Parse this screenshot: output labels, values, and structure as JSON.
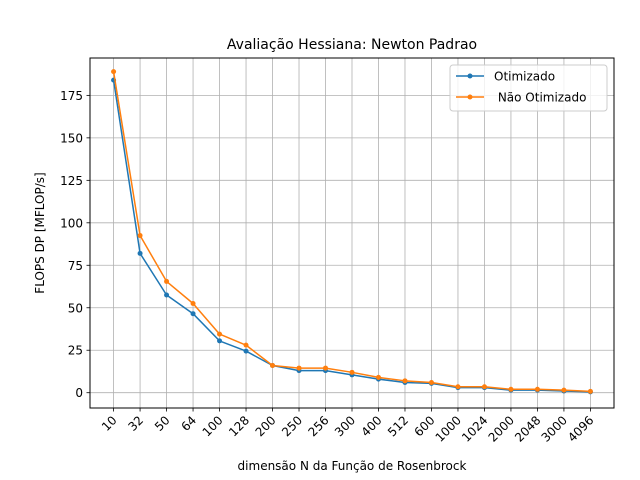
{
  "chart_data": {
    "type": "line",
    "title": "Avaliação Hessiana:  Newton Padrao",
    "xlabel": "dimensão N da Função de Rosenbrock",
    "ylabel": "FLOPS DP [MFLOP/s]",
    "categories": [
      "10",
      "32",
      "50",
      "64",
      "100",
      "128",
      "200",
      "250",
      "256",
      "300",
      "400",
      "512",
      "600",
      "1000",
      "1024",
      "2000",
      "2048",
      "3000",
      "4096"
    ],
    "yticks": [
      "0",
      "25",
      "50",
      "75",
      "100",
      "125",
      "150",
      "175"
    ],
    "ylim": [
      -9,
      197
    ],
    "grid": true,
    "legend_position": "top-right",
    "series": [
      {
        "name": "Otimizado",
        "color": "#1f77b4",
        "values": [
          184,
          82,
          57.5,
          46.5,
          30.5,
          24.5,
          16,
          13,
          13,
          10.5,
          8,
          6,
          5.5,
          3,
          3,
          1.5,
          1.5,
          1,
          0.5
        ]
      },
      {
        "name": " Não Otimizado",
        "color": "#ff7f0e",
        "values": [
          189,
          92.5,
          65.5,
          52.5,
          34.5,
          28,
          16,
          14.5,
          14.5,
          12,
          9,
          7,
          6,
          3.5,
          3.5,
          2,
          2,
          1.5,
          0.8
        ]
      }
    ]
  }
}
